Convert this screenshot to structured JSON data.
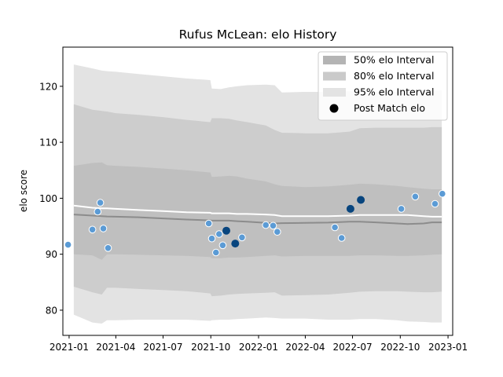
{
  "chart_data": {
    "type": "line",
    "title": "Rufus McLean: elo History",
    "xlabel": "",
    "ylabel": "elo score",
    "xlim": [
      "2020-12-20",
      "2023-01-10"
    ],
    "ylim": [
      75.5,
      127
    ],
    "x_ticks": [
      "2021-01",
      "2021-04",
      "2021-07",
      "2021-10",
      "2022-01",
      "2022-04",
      "2022-07",
      "2022-10",
      "2023-01"
    ],
    "y_ticks": [
      80,
      90,
      100,
      110,
      120
    ],
    "legend": {
      "placement": "top-right",
      "entries": [
        "50% elo Interval",
        "80% elo Interval",
        "95% elo Interval",
        "Post Match elo"
      ]
    },
    "colors": {
      "band50": "#b4b4b4",
      "band80": "#cacaca",
      "band95": "#e3e3e3",
      "center_line": "#8c8c8c",
      "upper_line": "#ffffff",
      "match_point": "#5b9bd5",
      "highlight_point": "#08457e"
    },
    "intervals": {
      "x": [
        "2021-01-10",
        "2021-02-15",
        "2021-03-05",
        "2021-03-15",
        "2021-04-01",
        "2021-05-15",
        "2021-07-01",
        "2021-08-15",
        "2021-09-30",
        "2021-10-03",
        "2021-10-20",
        "2021-11-05",
        "2021-11-20",
        "2021-12-10",
        "2022-01-15",
        "2022-02-01",
        "2022-02-15",
        "2022-04-01",
        "2022-05-15",
        "2022-06-25",
        "2022-07-15",
        "2022-08-15",
        "2022-09-25",
        "2022-10-15",
        "2022-11-15",
        "2022-12-01",
        "2022-12-20"
      ],
      "center": [
        97.1,
        96.9,
        96.8,
        96.75,
        96.7,
        96.6,
        96.4,
        96.2,
        96.05,
        96.0,
        96.0,
        96.0,
        95.9,
        95.8,
        95.6,
        95.5,
        95.55,
        95.6,
        95.65,
        95.8,
        95.8,
        95.7,
        95.5,
        95.4,
        95.5,
        95.7,
        95.7
      ],
      "upper_line": [
        98.7,
        98.3,
        98.2,
        98.2,
        98.1,
        97.9,
        97.7,
        97.5,
        97.4,
        97.3,
        97.3,
        97.3,
        97.2,
        97.2,
        97.1,
        97.0,
        96.8,
        96.8,
        96.8,
        96.9,
        97.0,
        97.0,
        97.0,
        97.0,
        96.8,
        96.7,
        96.7
      ],
      "p50_low": [
        90.0,
        89.8,
        89.0,
        90.0,
        90.0,
        89.9,
        89.8,
        89.7,
        89.5,
        89.3,
        89.3,
        89.4,
        89.4,
        89.5,
        89.7,
        89.8,
        89.6,
        89.7,
        89.7,
        89.7,
        89.8,
        89.8,
        89.7,
        89.7,
        89.8,
        89.9,
        90.0
      ],
      "p50_high": [
        105.8,
        106.3,
        106.4,
        105.9,
        105.8,
        105.6,
        105.3,
        105.0,
        104.6,
        103.8,
        103.9,
        104.0,
        103.9,
        103.5,
        103.0,
        102.5,
        102.2,
        102.0,
        102.1,
        102.4,
        102.6,
        102.5,
        102.2,
        102.0,
        101.7,
        101.6,
        101.6
      ],
      "p80_low": [
        84.2,
        83.2,
        82.8,
        84.0,
        84.0,
        83.8,
        83.6,
        83.4,
        83.0,
        82.5,
        82.6,
        82.8,
        82.9,
        83.0,
        83.1,
        83.2,
        82.6,
        82.7,
        82.8,
        83.1,
        83.3,
        83.4,
        83.4,
        83.3,
        83.2,
        83.2,
        83.3
      ],
      "p80_high": [
        116.8,
        115.8,
        115.6,
        115.5,
        115.2,
        114.9,
        114.5,
        114.0,
        113.6,
        114.3,
        114.3,
        114.2,
        113.9,
        113.6,
        113.0,
        112.2,
        111.7,
        111.6,
        111.6,
        111.9,
        112.5,
        112.6,
        112.6,
        112.6,
        112.6,
        112.7,
        112.7
      ],
      "p95_low": [
        79.2,
        77.8,
        77.6,
        78.2,
        78.2,
        78.3,
        78.3,
        78.3,
        78.1,
        78.2,
        78.3,
        78.3,
        78.4,
        78.5,
        78.7,
        78.6,
        78.5,
        78.5,
        78.3,
        78.3,
        78.4,
        78.4,
        78.2,
        78.0,
        77.9,
        77.8,
        77.8
      ],
      "p95_high": [
        123.9,
        123.2,
        122.8,
        122.7,
        122.6,
        122.2,
        121.8,
        121.4,
        121.1,
        119.6,
        119.5,
        119.8,
        120.0,
        120.2,
        120.3,
        120.2,
        118.9,
        119.0,
        119.0,
        119.1,
        119.1,
        119.0,
        119.0,
        119.0,
        119.1,
        119.2,
        119.3
      ]
    },
    "series": [
      {
        "name": "Post Match elo",
        "points": [
          {
            "x": "2020-12-30",
            "y": 91.7
          },
          {
            "x": "2021-02-15",
            "y": 94.4
          },
          {
            "x": "2021-02-25",
            "y": 97.6
          },
          {
            "x": "2021-03-02",
            "y": 99.2
          },
          {
            "x": "2021-03-08",
            "y": 94.6
          },
          {
            "x": "2021-03-17",
            "y": 91.1
          },
          {
            "x": "2021-09-27",
            "y": 95.5
          },
          {
            "x": "2021-10-03",
            "y": 92.8
          },
          {
            "x": "2021-10-11",
            "y": 90.3
          },
          {
            "x": "2021-10-17",
            "y": 93.6
          },
          {
            "x": "2021-10-24",
            "y": 91.6
          },
          {
            "x": "2021-11-30",
            "y": 93.0
          },
          {
            "x": "2022-01-15",
            "y": 95.2
          },
          {
            "x": "2022-01-29",
            "y": 95.1
          },
          {
            "x": "2022-02-06",
            "y": 94.0
          },
          {
            "x": "2022-05-28",
            "y": 94.8
          },
          {
            "x": "2022-06-10",
            "y": 92.9
          },
          {
            "x": "2022-10-03",
            "y": 98.1
          },
          {
            "x": "2022-10-30",
            "y": 100.3
          },
          {
            "x": "2022-12-07",
            "y": 99.0
          },
          {
            "x": "2022-12-21",
            "y": 100.8
          }
        ]
      },
      {
        "name": "highlighted",
        "points": [
          {
            "x": "2021-10-31",
            "y": 94.2
          },
          {
            "x": "2021-11-17",
            "y": 91.9
          },
          {
            "x": "2022-06-27",
            "y": 98.1
          },
          {
            "x": "2022-07-17",
            "y": 99.7
          }
        ]
      }
    ]
  }
}
